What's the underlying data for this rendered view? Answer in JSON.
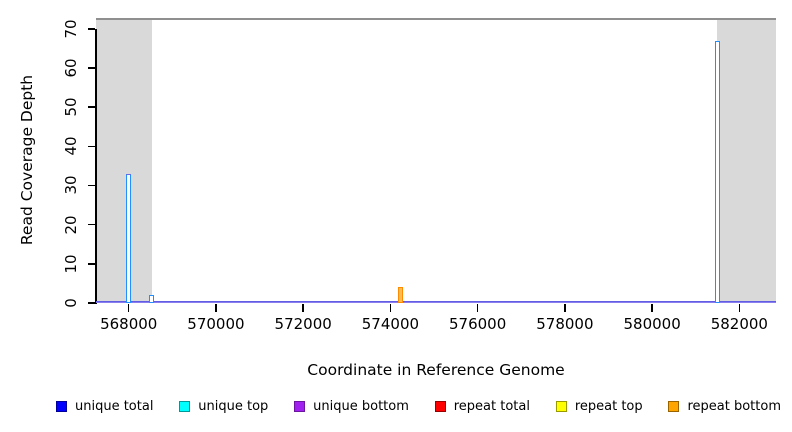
{
  "chart_data": {
    "type": "bar",
    "title": "",
    "xlabel": "Coordinate in Reference Genome",
    "ylabel": "Read Coverage Depth",
    "xlim": [
      567250,
      582840
    ],
    "ylim": [
      0,
      73
    ],
    "x_ticks": [
      568000,
      570000,
      572000,
      574000,
      576000,
      578000,
      580000,
      582000
    ],
    "y_ticks": [
      0,
      10,
      20,
      30,
      40,
      50,
      60,
      70
    ],
    "grid": false,
    "legend_position": "bottom",
    "axis_color": "#000000",
    "top_border_color": "#8f8f8f",
    "shaded_regions": [
      {
        "from": 567250,
        "to": 568545,
        "color": "#d9d9d9"
      },
      {
        "from": 581480,
        "to": 582840,
        "color": "#d9d9d9"
      }
    ],
    "baseline": {
      "value": 0,
      "series": "unique bottom",
      "color_top": "#4d4ddb",
      "color_bottom": "#9e8ef5"
    },
    "bars": [
      {
        "x": 568000,
        "height": 33,
        "stroke": "#1e90ff",
        "fill": "#ffffff",
        "cap": "#7d5fe0",
        "series": "unique"
      },
      {
        "x": 568530,
        "height": 2,
        "stroke": "#1e90ff",
        "fill": "#ffffff",
        "series": "unique"
      },
      {
        "x": 574230,
        "height": 4,
        "stroke": "#ff8c00",
        "fill": "#ffbb55",
        "series": "repeat bottom"
      },
      {
        "x": 581500,
        "height": 67,
        "stroke": "#1e90ff",
        "fill": "#ffffff",
        "series": "unique"
      }
    ],
    "legend": [
      {
        "label": "unique total",
        "fill": "#0000ff",
        "border": "#000099"
      },
      {
        "label": "unique top",
        "fill": "#00ffff",
        "border": "#009999"
      },
      {
        "label": "unique bottom",
        "fill": "#a020f0",
        "border": "#6b15a1"
      },
      {
        "label": "repeat total",
        "fill": "#ff0000",
        "border": "#990000"
      },
      {
        "label": "repeat top",
        "fill": "#ffff00",
        "border": "#999900"
      },
      {
        "label": "repeat bottom",
        "fill": "#ffa500",
        "border": "#996300"
      }
    ]
  }
}
